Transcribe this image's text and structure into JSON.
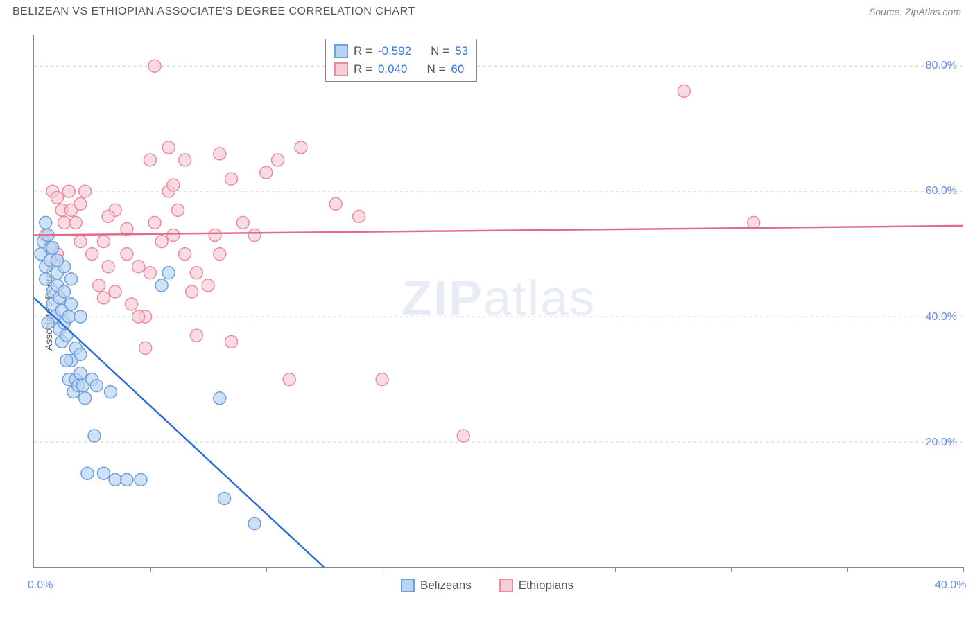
{
  "header": {
    "title": "BELIZEAN VS ETHIOPIAN ASSOCIATE'S DEGREE CORRELATION CHART",
    "source": "Source: ZipAtlas.com"
  },
  "ylabel": "Associate's Degree",
  "watermark_zip": "ZIP",
  "watermark_atlas": "atlas",
  "chart": {
    "type": "scatter",
    "background_color": "#ffffff",
    "grid_color": "#cccccc",
    "axis_color": "#888888",
    "tick_label_color": "#6a8fd8",
    "tick_fontsize": 16,
    "label_fontsize": 14,
    "xlim": [
      0,
      40
    ],
    "ylim": [
      0,
      85
    ],
    "x_ticks": [
      0,
      5,
      10,
      15,
      20,
      25,
      30,
      35,
      40
    ],
    "x_tick_labels": {
      "0": "0.0%",
      "40": "40.0%"
    },
    "y_gridlines": [
      20,
      40,
      60,
      80
    ],
    "y_tick_labels": {
      "20": "20.0%",
      "40": "40.0%",
      "60": "60.0%",
      "80": "80.0%"
    },
    "marker_radius": 9,
    "marker_stroke_width": 1.5,
    "line_width": 2.5,
    "series": [
      {
        "name": "Belizeans",
        "fill": "#b9d4f2",
        "stroke": "#6f9fd8",
        "line_color": "#2e6fd0",
        "R": "-0.592",
        "N": "53",
        "regression": {
          "x1": 0,
          "y1": 43,
          "x2": 12.5,
          "y2": 0
        },
        "points": [
          [
            0.3,
            50
          ],
          [
            0.4,
            52
          ],
          [
            0.5,
            48
          ],
          [
            0.5,
            46
          ],
          [
            0.6,
            53
          ],
          [
            0.7,
            51
          ],
          [
            0.7,
            49
          ],
          [
            0.8,
            44
          ],
          [
            0.8,
            42
          ],
          [
            0.9,
            40
          ],
          [
            1.0,
            47
          ],
          [
            1.0,
            45
          ],
          [
            1.1,
            43
          ],
          [
            1.1,
            38
          ],
          [
            1.2,
            41
          ],
          [
            1.2,
            36
          ],
          [
            1.3,
            48
          ],
          [
            1.3,
            39
          ],
          [
            1.4,
            37
          ],
          [
            1.5,
            40
          ],
          [
            1.5,
            30
          ],
          [
            1.6,
            33
          ],
          [
            1.6,
            42
          ],
          [
            1.7,
            28
          ],
          [
            1.8,
            35
          ],
          [
            1.8,
            30
          ],
          [
            1.9,
            29
          ],
          [
            2.0,
            34
          ],
          [
            2.0,
            31
          ],
          [
            2.1,
            29
          ],
          [
            2.2,
            27
          ],
          [
            2.3,
            15
          ],
          [
            2.5,
            30
          ],
          [
            2.6,
            21
          ],
          [
            2.7,
            29
          ],
          [
            3.0,
            15
          ],
          [
            3.3,
            28
          ],
          [
            3.5,
            14
          ],
          [
            4.0,
            14
          ],
          [
            4.6,
            14
          ],
          [
            5.5,
            45
          ],
          [
            5.8,
            47
          ],
          [
            8.0,
            27
          ],
          [
            8.2,
            11
          ],
          [
            9.5,
            7
          ],
          [
            0.5,
            55
          ],
          [
            0.8,
            51
          ],
          [
            1.0,
            49
          ],
          [
            1.3,
            44
          ],
          [
            1.6,
            46
          ],
          [
            2.0,
            40
          ],
          [
            0.6,
            39
          ],
          [
            1.4,
            33
          ]
        ]
      },
      {
        "name": "Ethiopians",
        "fill": "#f7cdd6",
        "stroke": "#e88ca1",
        "line_color": "#e46a8a",
        "R": "0.040",
        "N": "60",
        "regression": {
          "x1": 0,
          "y1": 53,
          "x2": 40,
          "y2": 54.5
        },
        "points": [
          [
            0.5,
            53
          ],
          [
            0.8,
            60
          ],
          [
            1.0,
            50
          ],
          [
            1.2,
            57
          ],
          [
            1.3,
            55
          ],
          [
            1.5,
            60
          ],
          [
            1.6,
            57
          ],
          [
            1.8,
            55
          ],
          [
            2.0,
            52
          ],
          [
            2.2,
            60
          ],
          [
            2.5,
            50
          ],
          [
            2.8,
            45
          ],
          [
            3.0,
            52
          ],
          [
            3.2,
            48
          ],
          [
            3.5,
            44
          ],
          [
            3.5,
            57
          ],
          [
            4.0,
            50
          ],
          [
            4.0,
            54
          ],
          [
            4.2,
            42
          ],
          [
            4.5,
            48
          ],
          [
            4.8,
            40
          ],
          [
            5.0,
            65
          ],
          [
            5.2,
            55
          ],
          [
            5.2,
            80
          ],
          [
            5.5,
            52
          ],
          [
            5.8,
            60
          ],
          [
            5.8,
            67
          ],
          [
            6.0,
            53
          ],
          [
            6.2,
            57
          ],
          [
            6.5,
            65
          ],
          [
            6.5,
            50
          ],
          [
            6.8,
            44
          ],
          [
            7.0,
            47
          ],
          [
            7.0,
            37
          ],
          [
            7.5,
            45
          ],
          [
            7.8,
            53
          ],
          [
            8.0,
            66
          ],
          [
            8.0,
            50
          ],
          [
            8.5,
            36
          ],
          [
            8.5,
            62
          ],
          [
            9.0,
            55
          ],
          [
            9.5,
            53
          ],
          [
            10.0,
            63
          ],
          [
            10.5,
            65
          ],
          [
            11.0,
            30
          ],
          [
            11.5,
            67
          ],
          [
            13.0,
            58
          ],
          [
            14.0,
            56
          ],
          [
            15.0,
            30
          ],
          [
            18.5,
            21
          ],
          [
            28.0,
            76
          ],
          [
            31.0,
            55
          ],
          [
            1.0,
            59
          ],
          [
            2.0,
            58
          ],
          [
            3.0,
            43
          ],
          [
            4.5,
            40
          ],
          [
            5.0,
            47
          ],
          [
            6.0,
            61
          ],
          [
            4.8,
            35
          ],
          [
            3.2,
            56
          ]
        ]
      }
    ]
  },
  "stats_box": {
    "R_label": "R =",
    "N_label": "N ="
  },
  "bottom_legend": {
    "items": [
      "Belizeans",
      "Ethiopians"
    ]
  }
}
